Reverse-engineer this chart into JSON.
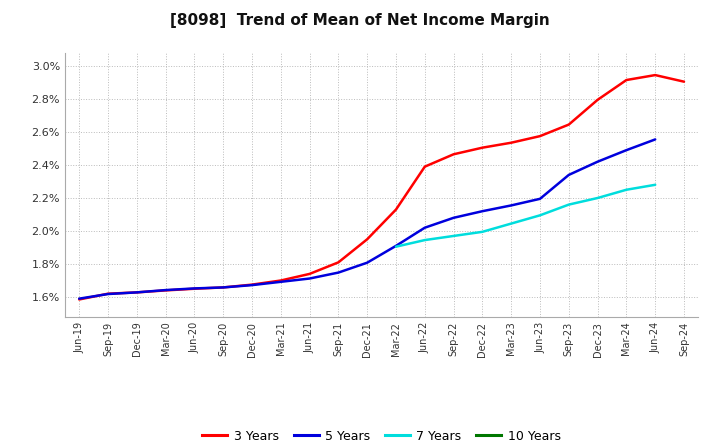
{
  "title": "[8098]  Trend of Mean of Net Income Margin",
  "title_fontsize": 11,
  "background_color": "#ffffff",
  "plot_background_color": "#ffffff",
  "grid_color": "#bbbbbb",
  "x_labels": [
    "Jun-19",
    "Sep-19",
    "Dec-19",
    "Mar-20",
    "Jun-20",
    "Sep-20",
    "Dec-20",
    "Mar-21",
    "Jun-21",
    "Sep-21",
    "Dec-21",
    "Mar-22",
    "Jun-22",
    "Sep-22",
    "Dec-22",
    "Mar-23",
    "Jun-23",
    "Sep-23",
    "Dec-23",
    "Mar-24",
    "Jun-24",
    "Sep-24"
  ],
  "ylim": [
    0.0148,
    0.0308
  ],
  "yticks": [
    0.016,
    0.018,
    0.02,
    0.022,
    0.024,
    0.026,
    0.028,
    0.03
  ],
  "series": {
    "3 Years": {
      "color": "#ff0000",
      "data": [
        0.01585,
        0.0162,
        0.01628,
        0.0164,
        0.0165,
        0.01658,
        0.01675,
        0.017,
        0.0174,
        0.0181,
        0.0195,
        0.0213,
        0.0239,
        0.02465,
        0.02505,
        0.02535,
        0.02575,
        0.02645,
        0.02795,
        0.02915,
        0.02945,
        0.02905
      ]
    },
    "5 Years": {
      "color": "#0000dd",
      "data": [
        0.0159,
        0.01618,
        0.01628,
        0.01642,
        0.01652,
        0.01658,
        0.01672,
        0.01692,
        0.01712,
        0.01748,
        0.01808,
        0.0191,
        0.0202,
        0.0208,
        0.0212,
        0.02155,
        0.02195,
        0.0234,
        0.0242,
        0.0249,
        0.02555,
        null
      ]
    },
    "7 Years": {
      "color": "#00dddd",
      "data": [
        null,
        null,
        null,
        null,
        null,
        null,
        null,
        null,
        null,
        null,
        null,
        0.01905,
        0.01945,
        0.0197,
        0.01995,
        0.02045,
        0.02095,
        0.0216,
        0.022,
        0.0225,
        0.0228,
        null
      ]
    },
    "10 Years": {
      "color": "#007700",
      "data": [
        null,
        null,
        null,
        null,
        null,
        null,
        null,
        null,
        null,
        null,
        null,
        null,
        null,
        null,
        null,
        null,
        null,
        null,
        null,
        null,
        null,
        null
      ]
    }
  },
  "legend_entries": [
    "3 Years",
    "5 Years",
    "7 Years",
    "10 Years"
  ],
  "legend_colors": [
    "#ff0000",
    "#0000dd",
    "#00dddd",
    "#007700"
  ]
}
